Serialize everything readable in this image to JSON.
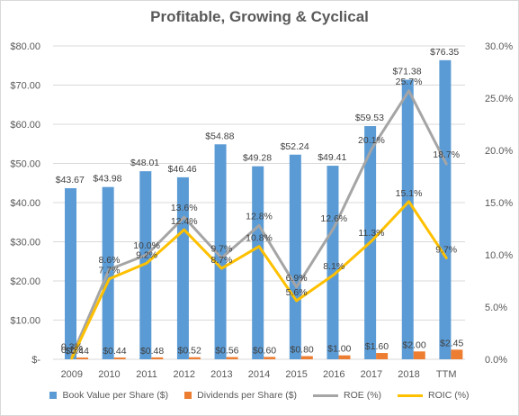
{
  "title": "Profitable, Growing & Cyclical",
  "chart_data": {
    "type": "bar",
    "title": "Profitable, Growing & Cyclical",
    "categories": [
      "2009",
      "2010",
      "2011",
      "2012",
      "2013",
      "2014",
      "2015",
      "2016",
      "2017",
      "2018",
      "TTM"
    ],
    "series": [
      {
        "name": "Book Value per Share ($)",
        "type": "bar",
        "axis": "left",
        "color": "#5b9bd5",
        "values": [
          43.67,
          43.98,
          48.01,
          46.46,
          54.88,
          49.28,
          52.24,
          49.41,
          59.53,
          71.38,
          76.35
        ],
        "labels": [
          "$43.67",
          "$43.98",
          "$48.01",
          "$46.46",
          "$54.88",
          "$49.28",
          "$52.24",
          "$49.41",
          "$59.53",
          "$71.38",
          "$76.35"
        ]
      },
      {
        "name": "Dividends per Share ($)",
        "type": "bar",
        "axis": "left",
        "color": "#ed7d31",
        "values": [
          0.44,
          0.44,
          0.48,
          0.52,
          0.56,
          0.6,
          0.8,
          1.0,
          1.6,
          2.0,
          2.45
        ],
        "labels": [
          "$0.44",
          "$0.44",
          "$0.48",
          "$0.52",
          "$0.56",
          "$0.60",
          "$0.80",
          "$1.00",
          "$1.60",
          "$2.00",
          "$2.45"
        ]
      },
      {
        "name": "ROE (%)",
        "type": "line",
        "axis": "right",
        "color": "#a5a5a5",
        "values": [
          0.3,
          8.6,
          10.0,
          13.6,
          9.7,
          12.8,
          6.9,
          12.6,
          20.1,
          25.7,
          18.7
        ],
        "labels": [
          "0.3%",
          "8.6%",
          "10.0%",
          "13.6%",
          "9.7%",
          "12.8%",
          "6.9%",
          "12.6%",
          "20.1%",
          "25.7%",
          "18.7%"
        ]
      },
      {
        "name": "ROIC (%)",
        "type": "line",
        "axis": "right",
        "color": "#ffc000",
        "values": [
          0.1,
          7.7,
          9.2,
          12.4,
          8.7,
          10.8,
          5.6,
          8.1,
          11.3,
          15.1,
          9.7
        ],
        "labels": [
          "0.1%",
          "7.7%",
          "9.2%",
          "12.4%",
          "8.7%",
          "10.8%",
          "5.6%",
          "8.1%",
          "11.3%",
          "15.1%",
          "9.7%"
        ]
      }
    ],
    "y_left": {
      "range": [
        0,
        80
      ],
      "ticks": [
        0,
        10,
        20,
        30,
        40,
        50,
        60,
        70,
        80
      ],
      "tick_labels": [
        "$-",
        "$10.00",
        "$20.00",
        "$30.00",
        "$40.00",
        "$50.00",
        "$60.00",
        "$70.00",
        "$80.00"
      ]
    },
    "y_right": {
      "range": [
        0,
        30
      ],
      "ticks": [
        0,
        5,
        10,
        15,
        20,
        25,
        30
      ],
      "tick_labels": [
        "0.0%",
        "5.0%",
        "10.0%",
        "15.0%",
        "20.0%",
        "25.0%",
        "30.0%"
      ]
    },
    "grid": true,
    "legend_position": "bottom"
  }
}
